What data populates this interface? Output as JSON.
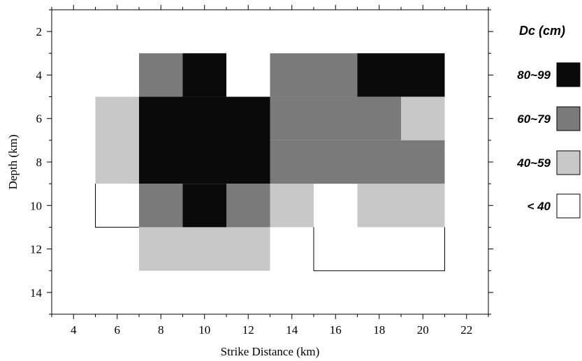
{
  "chart_data": {
    "type": "heatmap",
    "xlabel": "Strike Distance (km)",
    "ylabel": "Depth (km)",
    "xlim": [
      3,
      23
    ],
    "ylim": [
      15,
      1
    ],
    "x_ticks": [
      4,
      6,
      8,
      10,
      12,
      14,
      16,
      18,
      20,
      22
    ],
    "y_ticks": [
      2,
      4,
      6,
      8,
      10,
      12,
      14
    ],
    "legend": {
      "title": "Dc  (cm)",
      "placement": "right",
      "entries": [
        {
          "label": "80~99",
          "class": "80-99",
          "color": "#0a0a0a"
        },
        {
          "label": "60~79",
          "class": "60-79",
          "color": "#7a7a7a"
        },
        {
          "label": "40~59",
          "class": "40-59",
          "color": "#c8c8c8"
        },
        {
          "label": "< 40",
          "class": "<40",
          "color": "#ffffff"
        }
      ]
    },
    "cells": [
      {
        "x0": 7,
        "x1": 9,
        "y0": 3,
        "y1": 5,
        "class": "60-79"
      },
      {
        "x0": 9,
        "x1": 11,
        "y0": 3,
        "y1": 5,
        "class": "80-99"
      },
      {
        "x0": 13,
        "x1": 17,
        "y0": 3,
        "y1": 5,
        "class": "60-79"
      },
      {
        "x0": 17,
        "x1": 21,
        "y0": 3,
        "y1": 5,
        "class": "80-99"
      },
      {
        "x0": 5,
        "x1": 7,
        "y0": 5,
        "y1": 9,
        "class": "40-59"
      },
      {
        "x0": 7,
        "x1": 13,
        "y0": 5,
        "y1": 9,
        "class": "80-99"
      },
      {
        "x0": 13,
        "x1": 19,
        "y0": 5,
        "y1": 7,
        "class": "60-79"
      },
      {
        "x0": 19,
        "x1": 21,
        "y0": 5,
        "y1": 7,
        "class": "40-59"
      },
      {
        "x0": 13,
        "x1": 21,
        "y0": 7,
        "y1": 9,
        "class": "60-79"
      },
      {
        "x0": 5,
        "x1": 7,
        "y0": 9,
        "y1": 11,
        "class": "<40"
      },
      {
        "x0": 7,
        "x1": 9,
        "y0": 9,
        "y1": 11,
        "class": "60-79"
      },
      {
        "x0": 9,
        "x1": 11,
        "y0": 9,
        "y1": 11,
        "class": "80-99"
      },
      {
        "x0": 11,
        "x1": 13,
        "y0": 9,
        "y1": 11,
        "class": "60-79"
      },
      {
        "x0": 13,
        "x1": 15,
        "y0": 9,
        "y1": 11,
        "class": "40-59"
      },
      {
        "x0": 17,
        "x1": 21,
        "y0": 9,
        "y1": 11,
        "class": "40-59"
      },
      {
        "x0": 7,
        "x1": 13,
        "y0": 11,
        "y1": 13,
        "class": "40-59"
      },
      {
        "x0": 15,
        "x1": 21,
        "y0": 11,
        "y1": 13,
        "class": "<40"
      }
    ],
    "grid": false
  }
}
